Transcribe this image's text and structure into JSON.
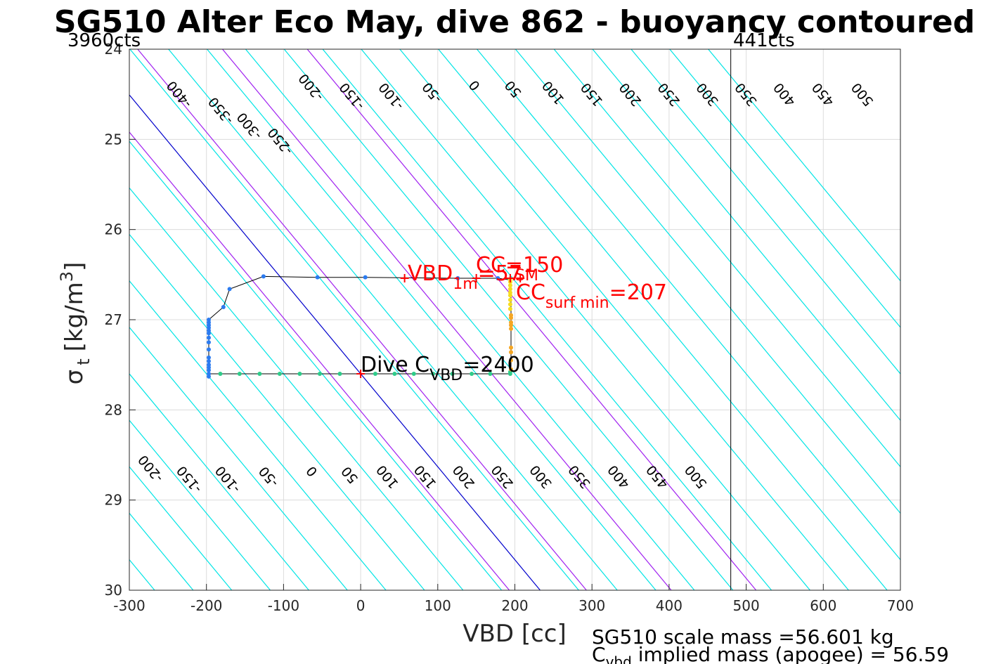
{
  "chart_data": {
    "type": "line",
    "title": "SG510 Alter Eco May, dive 862 - buoyancy contoured",
    "xlabel": "VBD [cc]",
    "ylabel_main": "σ",
    "ylabel_sub": "t",
    "ylabel_unit": "[kg/m",
    "ylabel_sup": "3",
    "ylabel_end": "]",
    "xlim": [
      -300,
      700
    ],
    "ylim": [
      24,
      30
    ],
    "y_reversed": true,
    "grid": true,
    "xticks": [
      -300,
      -200,
      -100,
      0,
      100,
      200,
      300,
      400,
      500,
      600,
      700
    ],
    "yticks": [
      24,
      25,
      26,
      27,
      28,
      29,
      30
    ],
    "xtick_labels": [
      "-300",
      "-200",
      "-100",
      "0",
      "100",
      "200",
      "300",
      "400",
      "500",
      "600",
      "700"
    ],
    "ytick_labels": [
      "24",
      "25",
      "26",
      "27",
      "28",
      "29",
      "30"
    ],
    "top_left_label": "3960cts",
    "top_right_label": "441cts",
    "limit_vbd": 480,
    "contour_color": "#00e5e5",
    "zero_contour_color": "#0000cc",
    "range_contour_color": "#a020f0",
    "contour_slope_cc_per_sigma": 97,
    "contour_ref_sigma": 27.6,
    "contours": [
      -500,
      -450,
      -400,
      -350,
      -300,
      -250,
      -200,
      -150,
      -100,
      -50,
      0,
      50,
      100,
      150,
      200,
      250,
      300,
      350,
      400,
      450,
      500,
      550,
      600,
      650,
      700,
      750,
      800
    ],
    "range_contours": [
      -40,
      60,
      170,
      280
    ],
    "top_contour_labels": [
      {
        "text": "-400",
        "x": -235,
        "y": 24.5
      },
      {
        "text": "-350",
        "x": -181,
        "y": 24.68
      },
      {
        "text": "-300",
        "x": -144,
        "y": 24.85
      },
      {
        "text": "-250",
        "x": -104,
        "y": 25.02
      },
      {
        "text": "-200",
        "x": -64,
        "y": 24.42
      },
      {
        "text": "-150",
        "x": -11,
        "y": 24.52
      },
      {
        "text": "-100",
        "x": 40,
        "y": 24.52
      },
      {
        "text": "-50",
        "x": 93,
        "y": 24.48
      },
      {
        "text": "0",
        "x": 148,
        "y": 24.4
      },
      {
        "text": "50",
        "x": 198,
        "y": 24.44
      },
      {
        "text": "100",
        "x": 250,
        "y": 24.48
      },
      {
        "text": "150",
        "x": 300,
        "y": 24.5
      },
      {
        "text": "200",
        "x": 350,
        "y": 24.5
      },
      {
        "text": "250",
        "x": 400,
        "y": 24.5
      },
      {
        "text": "300",
        "x": 450,
        "y": 24.5
      },
      {
        "text": "350",
        "x": 500,
        "y": 24.5
      },
      {
        "text": "400",
        "x": 550,
        "y": 24.5
      },
      {
        "text": "450",
        "x": 600,
        "y": 24.5
      },
      {
        "text": "500",
        "x": 651,
        "y": 24.5
      }
    ],
    "bottom_contour_labels": [
      {
        "text": "-200",
        "x": -272,
        "y": 28.65
      },
      {
        "text": "-150",
        "x": -222,
        "y": 28.77
      },
      {
        "text": "-100",
        "x": -172,
        "y": 28.77
      },
      {
        "text": "-50",
        "x": -119,
        "y": 28.74
      },
      {
        "text": "0",
        "x": -63,
        "y": 28.68
      },
      {
        "text": "50",
        "x": -14,
        "y": 28.72
      },
      {
        "text": "100",
        "x": 35,
        "y": 28.74
      },
      {
        "text": "150",
        "x": 84,
        "y": 28.74
      },
      {
        "text": "200",
        "x": 134,
        "y": 28.74
      },
      {
        "text": "250",
        "x": 184,
        "y": 28.74
      },
      {
        "text": "300",
        "x": 234,
        "y": 28.74
      },
      {
        "text": "350",
        "x": 284,
        "y": 28.74
      },
      {
        "text": "400",
        "x": 335,
        "y": 28.74
      },
      {
        "text": "450",
        "x": 385,
        "y": 28.74
      },
      {
        "text": "500",
        "x": 435,
        "y": 28.74
      }
    ],
    "trajectory": [
      [
        178,
        26.54
      ],
      [
        126,
        26.54
      ],
      [
        6,
        26.53
      ],
      [
        -56,
        26.53
      ],
      [
        -126,
        26.52
      ],
      [
        -170,
        26.66
      ],
      [
        -178,
        26.86
      ],
      [
        -197,
        27.0
      ],
      [
        -197,
        27.6
      ],
      [
        -182,
        27.6
      ],
      [
        -157,
        27.6
      ],
      [
        -131,
        27.6
      ],
      [
        -105,
        27.6
      ],
      [
        -79,
        27.6
      ],
      [
        -53,
        27.6
      ],
      [
        -27,
        27.6
      ],
      [
        0,
        27.6
      ],
      [
        19,
        27.6
      ],
      [
        44,
        27.6
      ],
      [
        69,
        27.6
      ],
      [
        94,
        27.6
      ],
      [
        119,
        27.6
      ],
      [
        144,
        27.6
      ],
      [
        168,
        27.6
      ],
      [
        194,
        27.6
      ],
      [
        195,
        27.52
      ],
      [
        195,
        27.4
      ],
      [
        195,
        27.26
      ],
      [
        195,
        27.1
      ],
      [
        195,
        26.98
      ],
      [
        195,
        26.85
      ],
      [
        195,
        26.75
      ],
      [
        195,
        26.65
      ],
      [
        195,
        26.56
      ],
      [
        178,
        26.54
      ]
    ],
    "descent_points_blue": [
      [
        178,
        26.54
      ],
      [
        126,
        26.54
      ],
      [
        6,
        26.53
      ],
      [
        -56,
        26.53
      ],
      [
        -126,
        26.52
      ],
      [
        -170,
        26.66
      ],
      [
        -178,
        26.86
      ],
      [
        -197,
        27.0
      ],
      [
        -197,
        27.03
      ],
      [
        -197,
        27.06
      ],
      [
        -197,
        27.09
      ],
      [
        -197,
        27.12
      ],
      [
        -197,
        27.15
      ],
      [
        -197,
        27.2
      ],
      [
        -197,
        27.25
      ],
      [
        -197,
        27.33
      ],
      [
        -197,
        27.42
      ],
      [
        -197,
        27.46
      ],
      [
        -197,
        27.5
      ],
      [
        -197,
        27.53
      ],
      [
        -197,
        27.56
      ],
      [
        -197,
        27.6
      ],
      [
        -197,
        27.63
      ]
    ],
    "bottom_points_green": [
      [
        -182,
        27.6
      ],
      [
        -157,
        27.6
      ],
      [
        -131,
        27.6
      ],
      [
        -105,
        27.6
      ],
      [
        -79,
        27.6
      ],
      [
        -53,
        27.6
      ],
      [
        -27,
        27.6
      ],
      [
        19,
        27.6
      ],
      [
        44,
        27.6
      ],
      [
        69,
        27.6
      ],
      [
        94,
        27.6
      ],
      [
        119,
        27.6
      ],
      [
        144,
        27.6
      ],
      [
        168,
        27.6
      ],
      [
        194,
        27.6
      ],
      [
        194,
        27.58
      ]
    ],
    "ascent_points_orange": [
      [
        195,
        27.55
      ],
      [
        195,
        27.45
      ],
      [
        195,
        27.36
      ],
      [
        195,
        27.31
      ],
      [
        195,
        27.1
      ],
      [
        195,
        27.06
      ],
      [
        195,
        27.03
      ],
      [
        195,
        26.98
      ],
      [
        195,
        26.95
      ]
    ],
    "ascent_points_yellow": [
      [
        194,
        26.88
      ],
      [
        194,
        26.83
      ],
      [
        194,
        26.78
      ],
      [
        194,
        26.73
      ],
      [
        194,
        26.7
      ],
      [
        194,
        26.66
      ],
      [
        194,
        26.62
      ],
      [
        194,
        26.58
      ],
      [
        194,
        26.55
      ]
    ],
    "red_markers": [
      [
        0,
        27.6
      ],
      [
        57,
        26.54
      ],
      [
        150,
        26.54
      ],
      [
        207,
        26.54
      ],
      [
        194,
        26.54
      ]
    ],
    "annotations": {
      "vbd1m": {
        "base": "VBD",
        "sub": "1m",
        "value": "=57"
      },
      "cc": {
        "base": "CC",
        "value": "=150"
      },
      "sm": {
        "text": "SM"
      },
      "ccsurf": {
        "base": "CC",
        "sub": "surf min",
        "value": "=207"
      },
      "dive": {
        "base": "Dive C",
        "sub": "VBD",
        "value": "=2400"
      }
    },
    "footer": {
      "line1": "SG510 scale mass =56.601 kg",
      "line2_base": "C",
      "line2_sub": "vbd",
      "line2_rest": " implied mass (apogee) = 56.59"
    }
  }
}
